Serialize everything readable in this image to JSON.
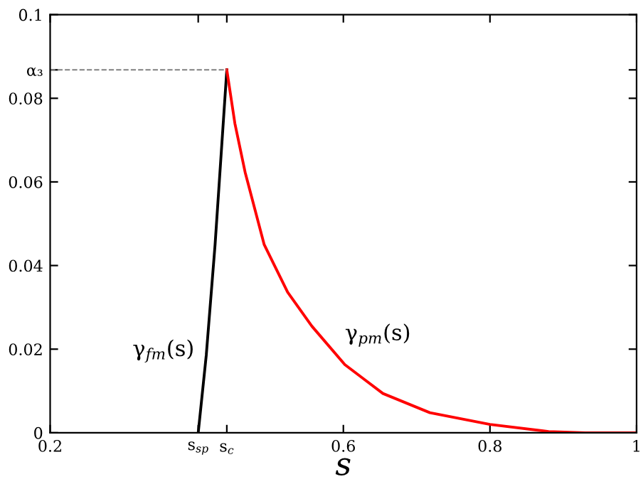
{
  "chart_data": {
    "type": "line",
    "xlabel": "s",
    "series": [
      {
        "name": "γ$_{fm}$(s)",
        "color": "#000000",
        "x": [
          0.402,
          0.413,
          0.425,
          0.441
        ],
        "values": [
          0,
          0.0186,
          0.045,
          0.0868
        ]
      },
      {
        "name": "γ$_{pm}$(s)",
        "color": "#ff0000",
        "x": [
          0.441,
          0.452,
          0.466,
          0.492,
          0.524,
          0.557,
          0.602,
          0.654,
          0.718,
          0.8,
          0.88,
          0.93,
          1.0
        ],
        "values": [
          0.0868,
          0.074,
          0.0623,
          0.045,
          0.0336,
          0.0255,
          0.0163,
          0.0094,
          0.0048,
          0.002,
          0.0003,
          0,
          0
        ]
      }
    ],
    "ref_lines": [
      {
        "axis": "y",
        "value": 0.0868,
        "color": "#808080",
        "line_style": "dashed"
      }
    ],
    "xlim": [
      0.2,
      1
    ],
    "ylim": [
      0,
      0.1
    ],
    "xticks": [
      0.2,
      {
        "value": 0.402,
        "label": "s$_{sp}$"
      },
      {
        "value": 0.441,
        "label": "s$_{c}$"
      },
      0.6,
      0.8,
      1
    ],
    "yticks": [
      0,
      0.02,
      0.04,
      0.06,
      0.08,
      {
        "value": 0.0868,
        "label": "α₃"
      },
      0.1
    ],
    "grid": false,
    "legend": false,
    "marker": "none",
    "line_style": "solid"
  }
}
